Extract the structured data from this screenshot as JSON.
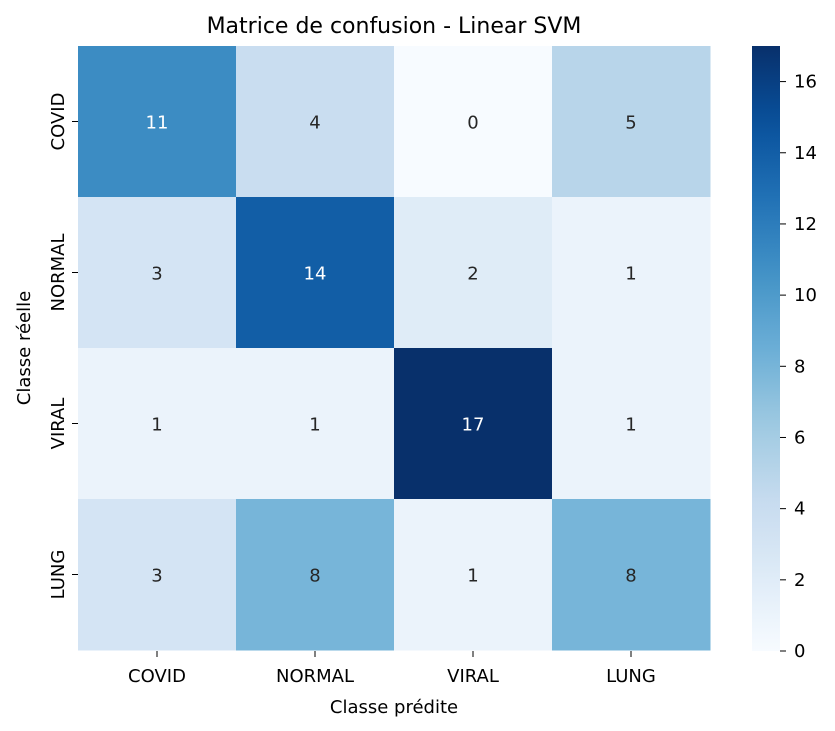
{
  "chart_data": {
    "type": "heatmap",
    "title": "Matrice de confusion - Linear SVM",
    "xlabel": "Classe prédite",
    "ylabel": "Classe réelle",
    "x_categories": [
      "COVID",
      "NORMAL",
      "VIRAL",
      "LUNG"
    ],
    "y_categories": [
      "COVID",
      "NORMAL",
      "VIRAL",
      "LUNG"
    ],
    "values": [
      [
        11,
        4,
        0,
        5
      ],
      [
        3,
        14,
        2,
        1
      ],
      [
        1,
        1,
        17,
        1
      ],
      [
        3,
        8,
        1,
        8
      ]
    ],
    "colormap": "Blues",
    "vmin": 0,
    "vmax": 17,
    "colorbar_ticks": [
      0,
      2,
      4,
      6,
      8,
      10,
      12,
      14,
      16
    ],
    "colorbar": "right"
  }
}
